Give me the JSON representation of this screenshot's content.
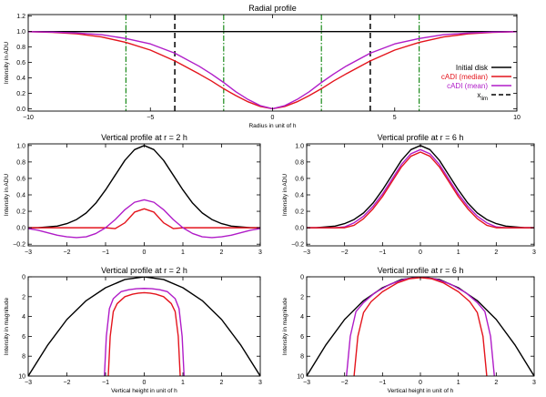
{
  "chart_data": [
    {
      "id": "radial",
      "type": "line",
      "title": "Radial profile",
      "xlabel": "Radius in unit of h",
      "ylabel": "Intensity in ADU",
      "xlim": [
        -10,
        10
      ],
      "ylim": [
        -0.03,
        1.22
      ],
      "xticks": [
        -10,
        -5,
        0,
        5,
        10
      ],
      "xtick_labels": [
        "−10",
        "−5",
        "0",
        "5",
        "10"
      ],
      "yticks": [
        0,
        0.2,
        0.4,
        0.6,
        0.8,
        1.0,
        1.2
      ],
      "ytick_labels": [
        "0.0",
        "0.2",
        "0.4",
        "0.6",
        "0.8",
        "1.0",
        "1.2"
      ],
      "x": [
        -10,
        -9,
        -8,
        -7,
        -6,
        -5,
        -4,
        -3,
        -2.5,
        -2,
        -1.5,
        -1,
        -0.5,
        0,
        0.5,
        1,
        1.5,
        2,
        2.5,
        3,
        4,
        5,
        6,
        7,
        8,
        9,
        10
      ],
      "series": [
        {
          "name": "Initial disk",
          "color": "#000000",
          "dash": "",
          "values": [
            1,
            1,
            1,
            1,
            1,
            1,
            1,
            1,
            1,
            1,
            1,
            1,
            1,
            1,
            1,
            1,
            1,
            1,
            1,
            1,
            1,
            1,
            1,
            1,
            1,
            1,
            1
          ]
        },
        {
          "name": "cADI (median)",
          "color": "#e4141c",
          "dash": "",
          "values": [
            0.998,
            0.99,
            0.97,
            0.93,
            0.86,
            0.76,
            0.62,
            0.45,
            0.36,
            0.26,
            0.17,
            0.09,
            0.03,
            0.0,
            0.03,
            0.09,
            0.17,
            0.26,
            0.36,
            0.45,
            0.62,
            0.76,
            0.86,
            0.93,
            0.97,
            0.99,
            0.998
          ]
        },
        {
          "name": "cADI (mean)",
          "color": "#b01cc8",
          "dash": "",
          "values": [
            0.998,
            0.993,
            0.98,
            0.96,
            0.91,
            0.84,
            0.72,
            0.55,
            0.45,
            0.34,
            0.22,
            0.12,
            0.04,
            0.0,
            0.04,
            0.12,
            0.22,
            0.34,
            0.45,
            0.55,
            0.72,
            0.84,
            0.91,
            0.96,
            0.98,
            0.993,
            0.998
          ]
        }
      ],
      "vlines": [
        {
          "x": -4,
          "color": "#000000",
          "style": "dash"
        },
        {
          "x": 4,
          "color": "#000000",
          "style": "dash"
        },
        {
          "x": -6,
          "color": "#1a8a1a",
          "style": "dashdot"
        },
        {
          "x": -2,
          "color": "#1a8a1a",
          "style": "dashdot"
        },
        {
          "x": 2,
          "color": "#1a8a1a",
          "style": "dashdot"
        },
        {
          "x": 6,
          "color": "#1a8a1a",
          "style": "dashdot"
        }
      ],
      "legend": [
        {
          "label": "Initial disk",
          "color": "#000000",
          "style": "solid",
          "label_color": "#000000"
        },
        {
          "label": "cADI (median)",
          "color": "#e4141c",
          "style": "solid",
          "label_color": "#e4141c"
        },
        {
          "label": "cADI (mean)",
          "color": "#b01cc8",
          "style": "solid",
          "label_color": "#b01cc8"
        },
        {
          "label": "x",
          "sub": "lim",
          "color": "#000000",
          "style": "dash",
          "label_color": "#000000"
        }
      ],
      "legend_position": "right"
    },
    {
      "id": "vert_r2_adu",
      "type": "line",
      "title": "Vertical profile at r = 2 h",
      "xlabel": "",
      "ylabel": "Intensity in ADU",
      "xlim": [
        -3,
        3
      ],
      "ylim": [
        -0.22,
        1.02
      ],
      "xticks": [
        -3,
        -2,
        -1,
        0,
        1,
        2,
        3
      ],
      "xtick_labels": [
        "−3",
        "−2",
        "−1",
        "0",
        "1",
        "2",
        "3"
      ],
      "yticks": [
        -0.2,
        0,
        0.2,
        0.4,
        0.6,
        0.8,
        1.0
      ],
      "ytick_labels": [
        "−0.2",
        "0.0",
        "0.2",
        "0.4",
        "0.6",
        "0.8",
        "1.0"
      ],
      "x": [
        -3,
        -2.75,
        -2.5,
        -2.25,
        -2,
        -1.75,
        -1.5,
        -1.25,
        -1,
        -0.75,
        -0.5,
        -0.25,
        0,
        0.25,
        0.5,
        0.75,
        1,
        1.25,
        1.5,
        1.75,
        2,
        2.25,
        2.5,
        2.75,
        3
      ],
      "series": [
        {
          "name": "Initial disk",
          "color": "#000000",
          "values": [
            0.0,
            0.0,
            0.01,
            0.02,
            0.05,
            0.1,
            0.18,
            0.3,
            0.46,
            0.64,
            0.82,
            0.95,
            1.0,
            0.95,
            0.82,
            0.64,
            0.46,
            0.3,
            0.18,
            0.1,
            0.05,
            0.02,
            0.01,
            0.0,
            0.0
          ]
        },
        {
          "name": "cADI (median)",
          "color": "#e4141c",
          "values": [
            0,
            0,
            0,
            0,
            0,
            0,
            0,
            0,
            0,
            -0.01,
            0.06,
            0.19,
            0.23,
            0.19,
            0.06,
            -0.01,
            0,
            0,
            0,
            0,
            0,
            0,
            0,
            0,
            0
          ]
        },
        {
          "name": "cADI (mean)",
          "color": "#b01cc8",
          "values": [
            -0.01,
            -0.03,
            -0.06,
            -0.09,
            -0.11,
            -0.12,
            -0.11,
            -0.07,
            0.0,
            0.1,
            0.22,
            0.31,
            0.34,
            0.31,
            0.22,
            0.1,
            0.0,
            -0.07,
            -0.11,
            -0.12,
            -0.11,
            -0.09,
            -0.06,
            -0.03,
            -0.01
          ]
        }
      ]
    },
    {
      "id": "vert_r6_adu",
      "type": "line",
      "title": "Vertical profile at r = 6 h",
      "xlabel": "",
      "ylabel": "Intensity in ADU",
      "xlim": [
        -3,
        3
      ],
      "ylim": [
        -0.22,
        1.02
      ],
      "xticks": [
        -3,
        -2,
        -1,
        0,
        1,
        2,
        3
      ],
      "xtick_labels": [
        "−3",
        "−2",
        "−1",
        "0",
        "1",
        "2",
        "3"
      ],
      "yticks": [
        -0.2,
        0,
        0.2,
        0.4,
        0.6,
        0.8,
        1.0
      ],
      "ytick_labels": [
        "−0.2",
        "0.0",
        "0.2",
        "0.4",
        "0.6",
        "0.8",
        "1.0"
      ],
      "x": [
        -3,
        -2.75,
        -2.5,
        -2.25,
        -2,
        -1.75,
        -1.5,
        -1.25,
        -1,
        -0.75,
        -0.5,
        -0.25,
        0,
        0.25,
        0.5,
        0.75,
        1,
        1.25,
        1.5,
        1.75,
        2,
        2.25,
        2.5,
        2.75,
        3
      ],
      "series": [
        {
          "name": "Initial disk",
          "color": "#000000",
          "values": [
            0.0,
            0.0,
            0.01,
            0.02,
            0.05,
            0.1,
            0.18,
            0.3,
            0.46,
            0.64,
            0.82,
            0.95,
            1.0,
            0.95,
            0.82,
            0.64,
            0.46,
            0.3,
            0.18,
            0.1,
            0.05,
            0.02,
            0.01,
            0.0,
            0.0
          ]
        },
        {
          "name": "cADI (mean)",
          "color": "#b01cc8",
          "values": [
            0.0,
            0.0,
            0.0,
            0.0,
            0.01,
            0.06,
            0.14,
            0.26,
            0.41,
            0.59,
            0.77,
            0.9,
            0.95,
            0.9,
            0.77,
            0.59,
            0.41,
            0.26,
            0.14,
            0.06,
            0.01,
            0.0,
            0.0,
            0.0,
            0.0
          ]
        },
        {
          "name": "cADI (median)",
          "color": "#e4141c",
          "values": [
            0.0,
            0.0,
            0.0,
            0.0,
            0.0,
            0.03,
            0.11,
            0.23,
            0.38,
            0.56,
            0.74,
            0.87,
            0.92,
            0.87,
            0.74,
            0.56,
            0.38,
            0.23,
            0.11,
            0.03,
            0.0,
            0.0,
            0.0,
            0.0,
            0.0
          ]
        }
      ]
    },
    {
      "id": "vert_r2_mag",
      "type": "line",
      "title": "Vertical profile at r = 2 h",
      "xlabel": "Vertical height in unit of h",
      "ylabel": "Intensity in magnitude",
      "xlim": [
        -3,
        3
      ],
      "ylim": [
        10,
        0
      ],
      "inverted_y": true,
      "xticks": [
        -3,
        -2,
        -1,
        0,
        1,
        2,
        3
      ],
      "xtick_labels": [
        "−3",
        "−2",
        "−1",
        "0",
        "1",
        "2",
        "3"
      ],
      "yticks": [
        0,
        2,
        4,
        6,
        8,
        10
      ],
      "ytick_labels": [
        "0",
        "2",
        "4",
        "6",
        "8",
        "10"
      ],
      "series": [
        {
          "name": "Initial disk",
          "color": "#000000",
          "x": [
            -3,
            -2.5,
            -2,
            -1.5,
            -1,
            -0.5,
            0,
            0.5,
            1,
            1.5,
            2,
            2.5,
            3
          ],
          "values": [
            10,
            6.9,
            4.3,
            2.4,
            1.1,
            0.27,
            0,
            0.27,
            1.1,
            2.4,
            4.3,
            6.9,
            10
          ]
        },
        {
          "name": "cADI (mean)",
          "color": "#b01cc8",
          "x": [
            -1.03,
            -0.98,
            -0.9,
            -0.8,
            -0.6,
            -0.4,
            -0.2,
            0,
            0.2,
            0.4,
            0.6,
            0.8,
            0.9,
            0.98,
            1.03
          ],
          "values": [
            10,
            6.0,
            3.2,
            2.2,
            1.5,
            1.3,
            1.2,
            1.17,
            1.2,
            1.3,
            1.5,
            2.2,
            3.2,
            6.0,
            10
          ]
        },
        {
          "name": "cADI (median)",
          "color": "#e4141c",
          "x": [
            -0.93,
            -0.88,
            -0.8,
            -0.7,
            -0.5,
            -0.3,
            -0.15,
            0,
            0.15,
            0.3,
            0.5,
            0.7,
            0.8,
            0.88,
            0.93
          ],
          "values": [
            10,
            6.0,
            3.5,
            2.7,
            2.0,
            1.75,
            1.65,
            1.6,
            1.65,
            1.75,
            2.0,
            2.7,
            3.5,
            6.0,
            10
          ]
        }
      ]
    },
    {
      "id": "vert_r6_mag",
      "type": "line",
      "title": "Vertical profile at r = 6 h",
      "xlabel": "Vertical height in unit of h",
      "ylabel": "Intensity in magnitude",
      "xlim": [
        -3,
        3
      ],
      "ylim": [
        10,
        0
      ],
      "inverted_y": true,
      "xticks": [
        -3,
        -2,
        -1,
        0,
        1,
        2,
        3
      ],
      "xtick_labels": [
        "−3",
        "−2",
        "−1",
        "0",
        "1",
        "2",
        "3"
      ],
      "yticks": [
        0,
        2,
        4,
        6,
        8,
        10
      ],
      "ytick_labels": [
        "0",
        "2",
        "4",
        "6",
        "8",
        "10"
      ],
      "series": [
        {
          "name": "Initial disk",
          "color": "#000000",
          "x": [
            -3,
            -2.5,
            -2,
            -1.5,
            -1,
            -0.5,
            0,
            0.5,
            1,
            1.5,
            2,
            2.5,
            3
          ],
          "values": [
            10,
            6.9,
            4.3,
            2.4,
            1.1,
            0.27,
            0,
            0.27,
            1.1,
            2.4,
            4.3,
            6.9,
            10
          ]
        },
        {
          "name": "cADI (mean)",
          "color": "#b01cc8",
          "x": [
            -1.95,
            -1.85,
            -1.7,
            -1.5,
            -1.2,
            -0.8,
            -0.4,
            0,
            0.4,
            0.8,
            1.2,
            1.5,
            1.7,
            1.85,
            1.95
          ],
          "values": [
            10,
            6.0,
            3.5,
            2.6,
            1.6,
            0.75,
            0.22,
            0.05,
            0.22,
            0.75,
            1.6,
            2.6,
            3.5,
            6.0,
            10
          ]
        },
        {
          "name": "cADI (median)",
          "color": "#e4141c",
          "x": [
            -1.75,
            -1.65,
            -1.5,
            -1.3,
            -1.0,
            -0.6,
            -0.3,
            0,
            0.3,
            0.6,
            1.0,
            1.3,
            1.5,
            1.65,
            1.75
          ],
          "values": [
            10,
            6.0,
            3.6,
            2.5,
            1.5,
            0.6,
            0.2,
            0.08,
            0.2,
            0.6,
            1.5,
            2.5,
            3.6,
            6.0,
            10
          ]
        }
      ]
    }
  ]
}
